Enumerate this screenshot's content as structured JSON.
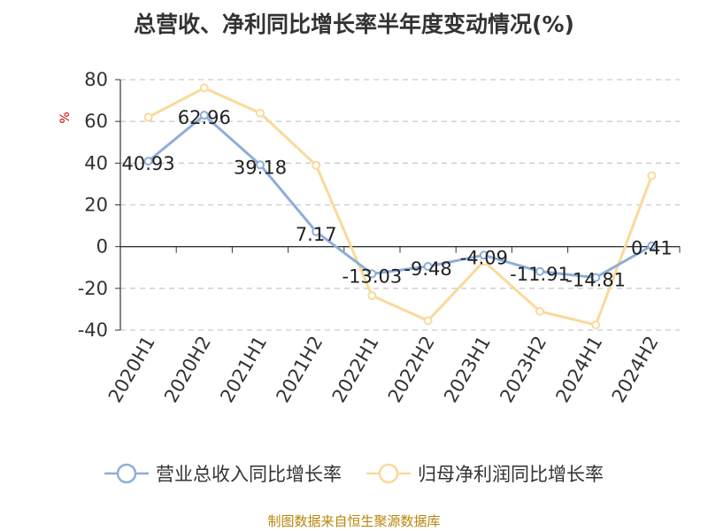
{
  "chart_data": {
    "type": "line",
    "title": "总营收、净利同比增长率半年度变动情况(%)",
    "ylabel": "%",
    "xlabel": "",
    "categories": [
      "2020H1",
      "2020H2",
      "2021H1",
      "2021H2",
      "2022H1",
      "2022H2",
      "2023H1",
      "2023H2",
      "2024H1",
      "2024H2"
    ],
    "ylim": [
      -40,
      80
    ],
    "yticks": [
      80,
      60,
      40,
      20,
      0,
      -20,
      -40
    ],
    "grid": true,
    "legend_position": "bottom",
    "series": [
      {
        "name": "营业总收入同比增长率",
        "color": "#8eaed8",
        "values": [
          40.93,
          62.96,
          39.18,
          7.17,
          -13.03,
          -9.48,
          -4.09,
          -11.91,
          -14.81,
          0.41
        ],
        "labels": [
          "40.93",
          "62.96",
          "39.18",
          "7.17",
          "-13.03",
          "-9.48",
          "-4.09",
          "-11.91",
          "-14.81",
          "0.41"
        ]
      },
      {
        "name": "归母净利润同比增长率",
        "color": "#fbd99a",
        "values": [
          62,
          76,
          64,
          39,
          -23.5,
          -35.5,
          -7,
          -31,
          -37.5,
          34
        ]
      }
    ]
  },
  "source_note": "制图数据来自恒生聚源数据库",
  "colors": {
    "title": "#333333",
    "ylabel": "#cc0000",
    "source": "#b8860b",
    "grid": "#cccccc"
  }
}
